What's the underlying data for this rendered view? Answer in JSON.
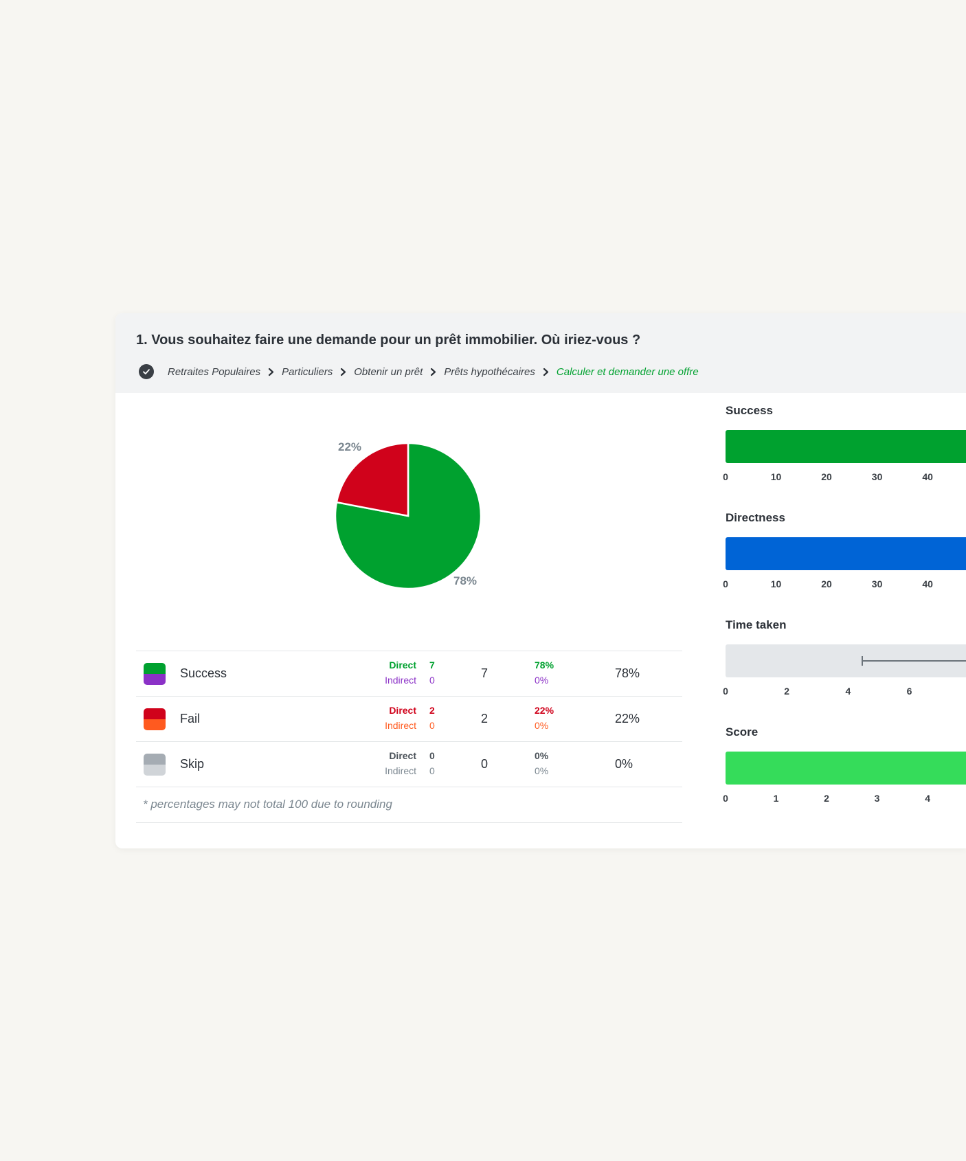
{
  "question": {
    "title": "1. Vous souhaitez faire une demande pour un prêt immobilier. Où iriez-vous ?"
  },
  "breadcrumb": [
    "Retraites Populaires",
    "Particuliers",
    "Obtenir un prêt",
    "Prêts hypothécaires",
    "Calculer et demander une offre"
  ],
  "chart_data": {
    "type": "pie",
    "slices": [
      {
        "label": "Success",
        "value": 78,
        "color": "#00a12f",
        "display": "78%"
      },
      {
        "label": "Fail",
        "value": 22,
        "color": "#d0021b",
        "display": "22%"
      }
    ]
  },
  "table": {
    "rows": [
      {
        "label": "Success",
        "colors": [
          "#00a12f",
          "#8b31c7"
        ],
        "direct_label": "Direct",
        "direct_value": "7",
        "direct_pct": "78%",
        "indirect_label": "Indirect",
        "indirect_value": "0",
        "indirect_pct": "0%",
        "total": "7",
        "total_pct": "78%",
        "direct_color": "#00a12f",
        "indirect_color": "#8b31c7"
      },
      {
        "label": "Fail",
        "colors": [
          "#d0021b",
          "#ff5a1f"
        ],
        "direct_label": "Direct",
        "direct_value": "2",
        "direct_pct": "22%",
        "indirect_label": "Indirect",
        "indirect_value": "0",
        "indirect_pct": "0%",
        "total": "2",
        "total_pct": "22%",
        "direct_color": "#d0021b",
        "indirect_color": "#ff5a1f"
      },
      {
        "label": "Skip",
        "colors": [
          "#a5acb3",
          "#d0d4d8"
        ],
        "direct_label": "Direct",
        "direct_value": "0",
        "direct_pct": "0%",
        "indirect_label": "Indirect",
        "indirect_value": "0",
        "indirect_pct": "0%",
        "total": "0",
        "total_pct": "0%",
        "direct_color": "#4a5158",
        "indirect_color": "#7b8790"
      }
    ],
    "footnote": "* percentages may not total 100 due to rounding"
  },
  "metrics": [
    {
      "title": "Success",
      "color": "#00a12f",
      "fill_fraction": 1.0,
      "ticks": [
        "0",
        "10",
        "20",
        "30",
        "40"
      ],
      "axis_max": 47.6
    },
    {
      "title": "Directness",
      "color": "#0064d6",
      "fill_fraction": 1.0,
      "ticks": [
        "0",
        "10",
        "20",
        "30",
        "40"
      ],
      "axis_max": 47.6
    },
    {
      "title": "Time taken",
      "color": "#e4e7ea",
      "fill_fraction": 1.0,
      "ticks": [
        "0",
        "2",
        "4",
        "6"
      ],
      "axis_max": 7.85,
      "whisker_start": 4.44
    },
    {
      "title": "Score",
      "color": "#35dc5a",
      "fill_fraction": 1.0,
      "ticks": [
        "0",
        "1",
        "2",
        "3",
        "4"
      ],
      "axis_max": 4.76
    }
  ]
}
